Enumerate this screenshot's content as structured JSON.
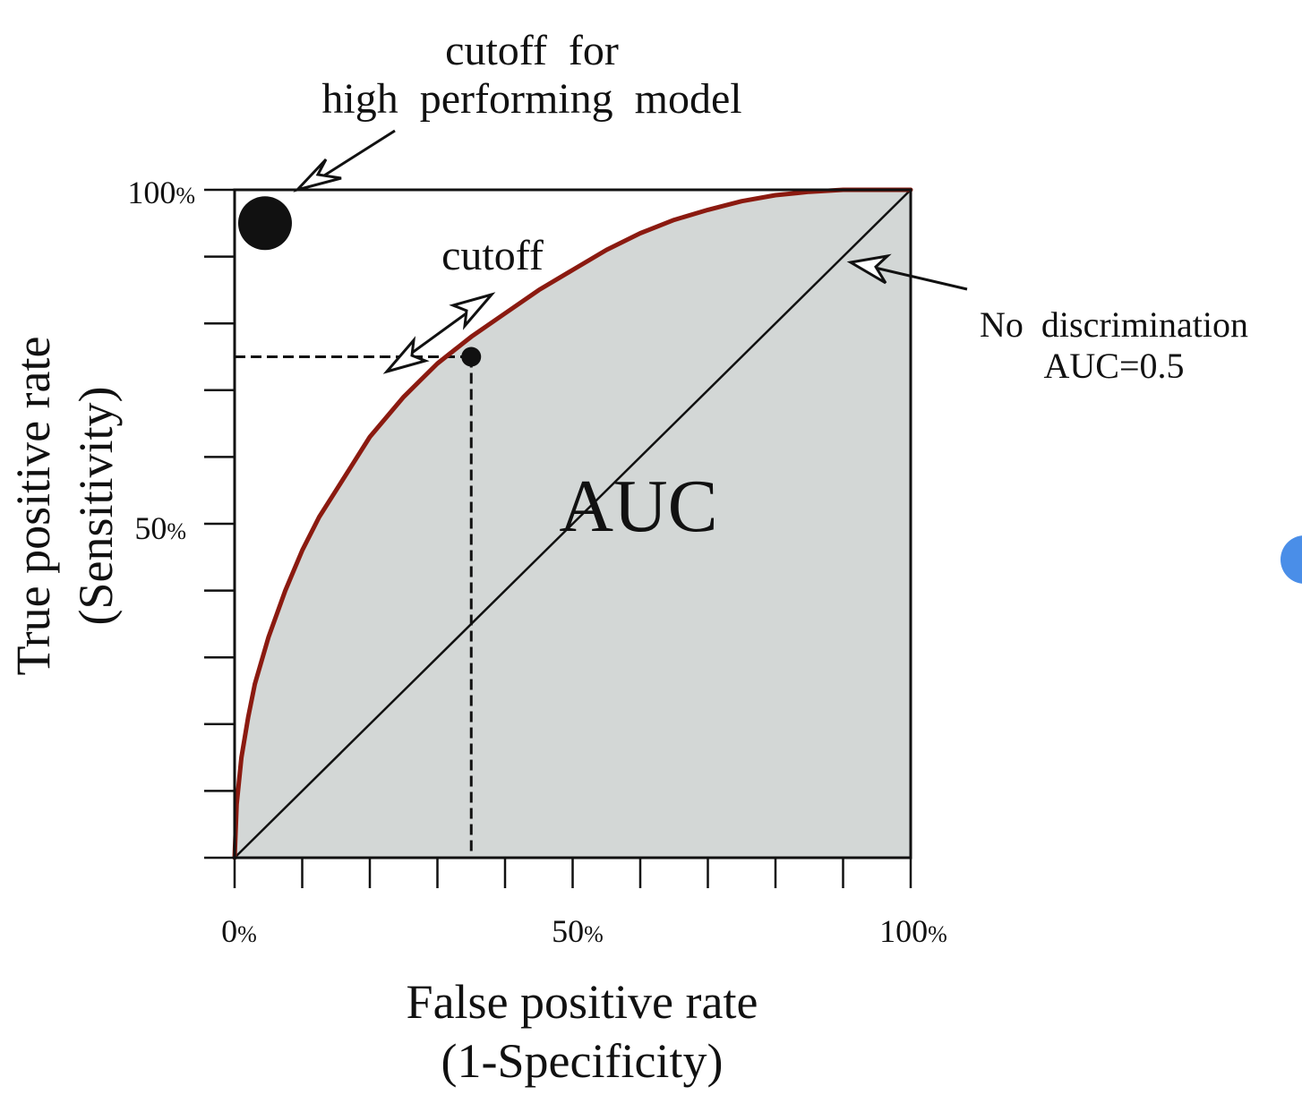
{
  "chart_data": {
    "type": "line",
    "xlabel": [
      "False positive rate",
      "(1-Specificity)"
    ],
    "ylabel": [
      "True positive rate",
      "(Sensitivity)"
    ],
    "xlim": [
      0,
      100
    ],
    "ylim": [
      0,
      100
    ],
    "x_ticks": [
      0,
      10,
      20,
      30,
      40,
      50,
      60,
      70,
      80,
      90,
      100
    ],
    "y_ticks": [
      0,
      10,
      20,
      30,
      40,
      50,
      60,
      70,
      80,
      90,
      100
    ],
    "x_tick_labels": [
      {
        "value": 0,
        "number": "0",
        "unit": "%"
      },
      {
        "value": 50,
        "number": "50",
        "unit": "%"
      },
      {
        "value": 100,
        "number": "100",
        "unit": "%"
      }
    ],
    "y_tick_labels": [
      {
        "value": 50,
        "number": "50",
        "unit": "%"
      },
      {
        "value": 100,
        "number": "100",
        "unit": "%"
      }
    ],
    "grid": false,
    "series": [
      {
        "role": "roc-curve",
        "color": "#8b1a10",
        "x": [
          0,
          0.3,
          1,
          2,
          3,
          5,
          7.5,
          10,
          12.5,
          15,
          17.5,
          20,
          22.5,
          25,
          27.5,
          30,
          32.5,
          35,
          40,
          45,
          50,
          55,
          60,
          65,
          70,
          75,
          80,
          85,
          90,
          95,
          100
        ],
        "y": [
          0,
          8,
          15,
          21,
          26,
          33,
          40,
          46,
          51,
          55,
          59,
          63,
          66,
          69,
          71.5,
          74,
          76,
          78,
          81.5,
          85,
          88,
          91,
          93.5,
          95.5,
          97,
          98.3,
          99.2,
          99.7,
          100,
          100,
          100
        ]
      },
      {
        "role": "diagonal",
        "color": "#111111",
        "x": [
          0,
          100
        ],
        "y": [
          0,
          100
        ]
      }
    ],
    "area_fill": "#d3d7d6",
    "points": [
      {
        "role": "ideal-point",
        "x": 4.5,
        "y": 95
      },
      {
        "role": "cutoff-point",
        "x": 35,
        "y": 75
      }
    ],
    "annotations": {
      "high_performing": [
        "cutoff  for",
        "high  performing  model"
      ],
      "cutoff": "cutoff",
      "no_discrimination": [
        "No  discrimination",
        "AUC=0.5"
      ],
      "auc": "AUC"
    }
  }
}
